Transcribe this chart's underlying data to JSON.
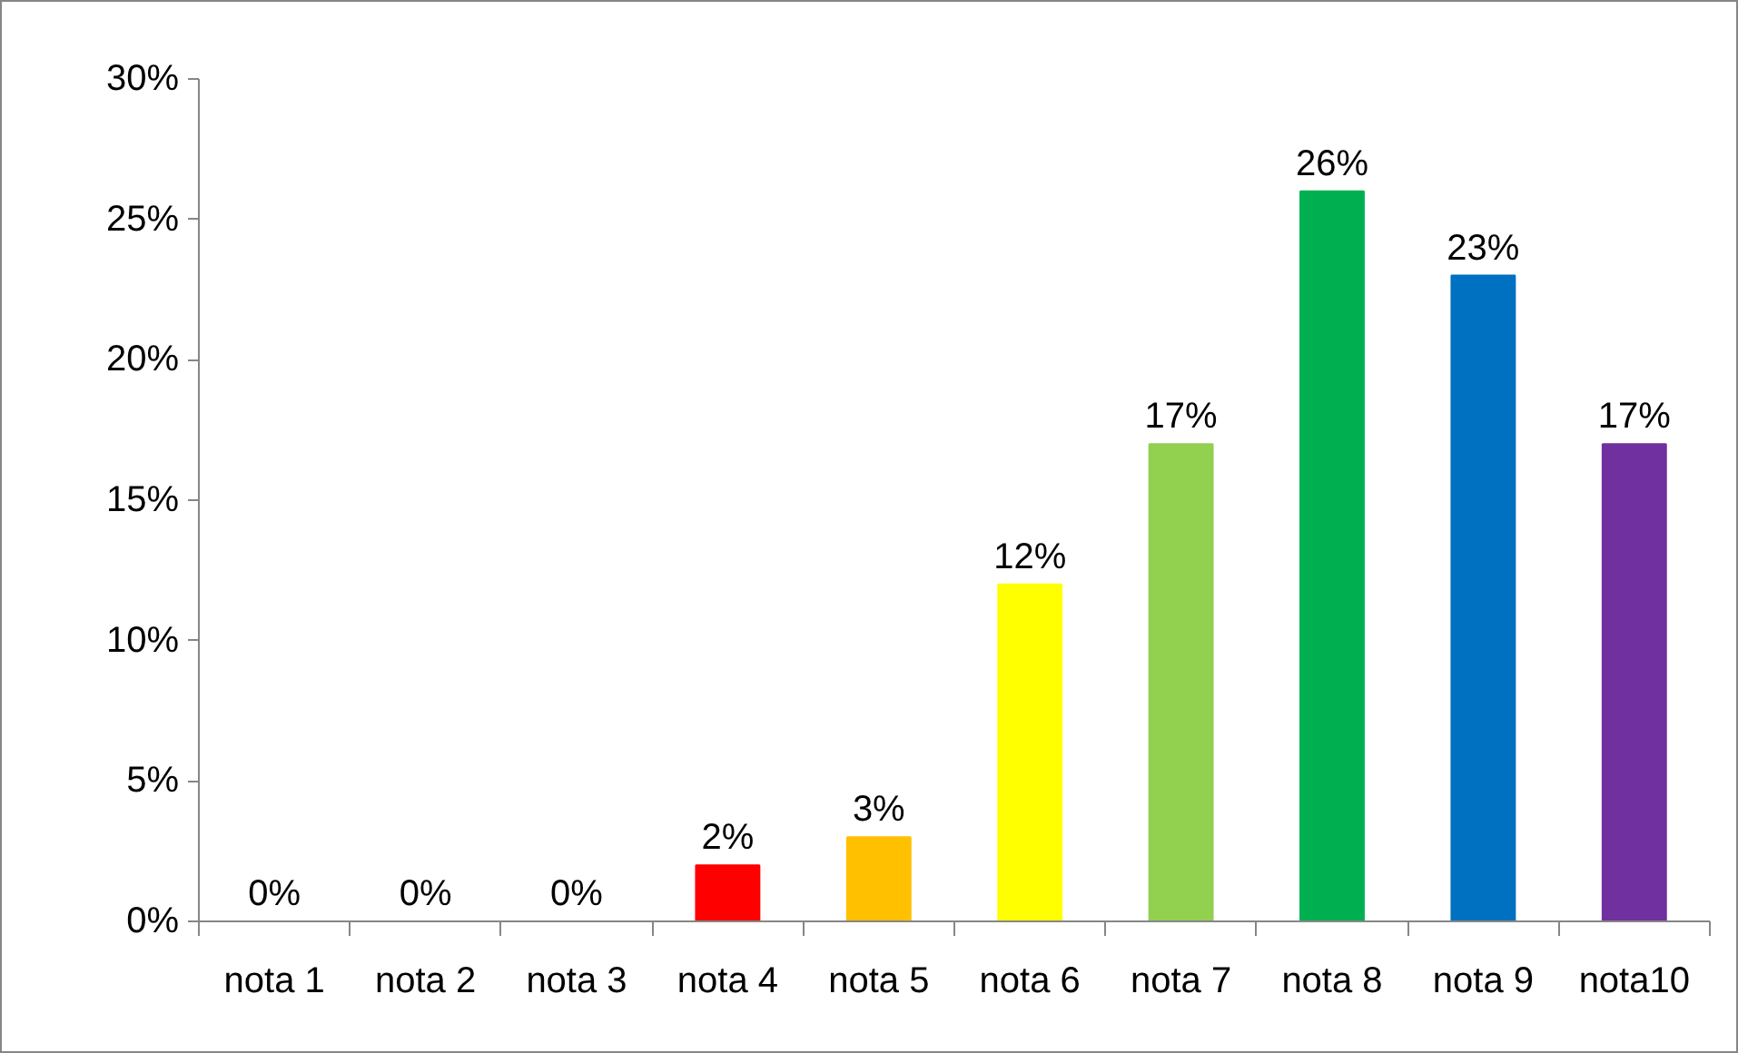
{
  "chart_data": {
    "type": "bar",
    "categories": [
      "nota 1",
      "nota 2",
      "nota 3",
      "nota 4",
      "nota 5",
      "nota 6",
      "nota 7",
      "nota 8",
      "nota 9",
      "nota10"
    ],
    "values": [
      0,
      0,
      0,
      2,
      3,
      12,
      17,
      26,
      23,
      17
    ],
    "colors": [
      "#ff0000",
      "#ff0000",
      "#ff0000",
      "#ff0000",
      "#ffc000",
      "#ffff00",
      "#92d050",
      "#00b050",
      "#0070c0",
      "#7030a0"
    ],
    "value_labels": [
      "0%",
      "0%",
      "0%",
      "2%",
      "3%",
      "12%",
      "17%",
      "26%",
      "23%",
      "17%"
    ],
    "ylim": [
      0,
      30
    ],
    "yticks": [
      {
        "value": 0,
        "label": "0%"
      },
      {
        "value": 5,
        "label": "5%"
      },
      {
        "value": 10,
        "label": "10%"
      },
      {
        "value": 15,
        "label": "15%"
      },
      {
        "value": 20,
        "label": "20%"
      },
      {
        "value": 25,
        "label": "25%"
      },
      {
        "value": 30,
        "label": "30%"
      }
    ],
    "grid": false
  }
}
